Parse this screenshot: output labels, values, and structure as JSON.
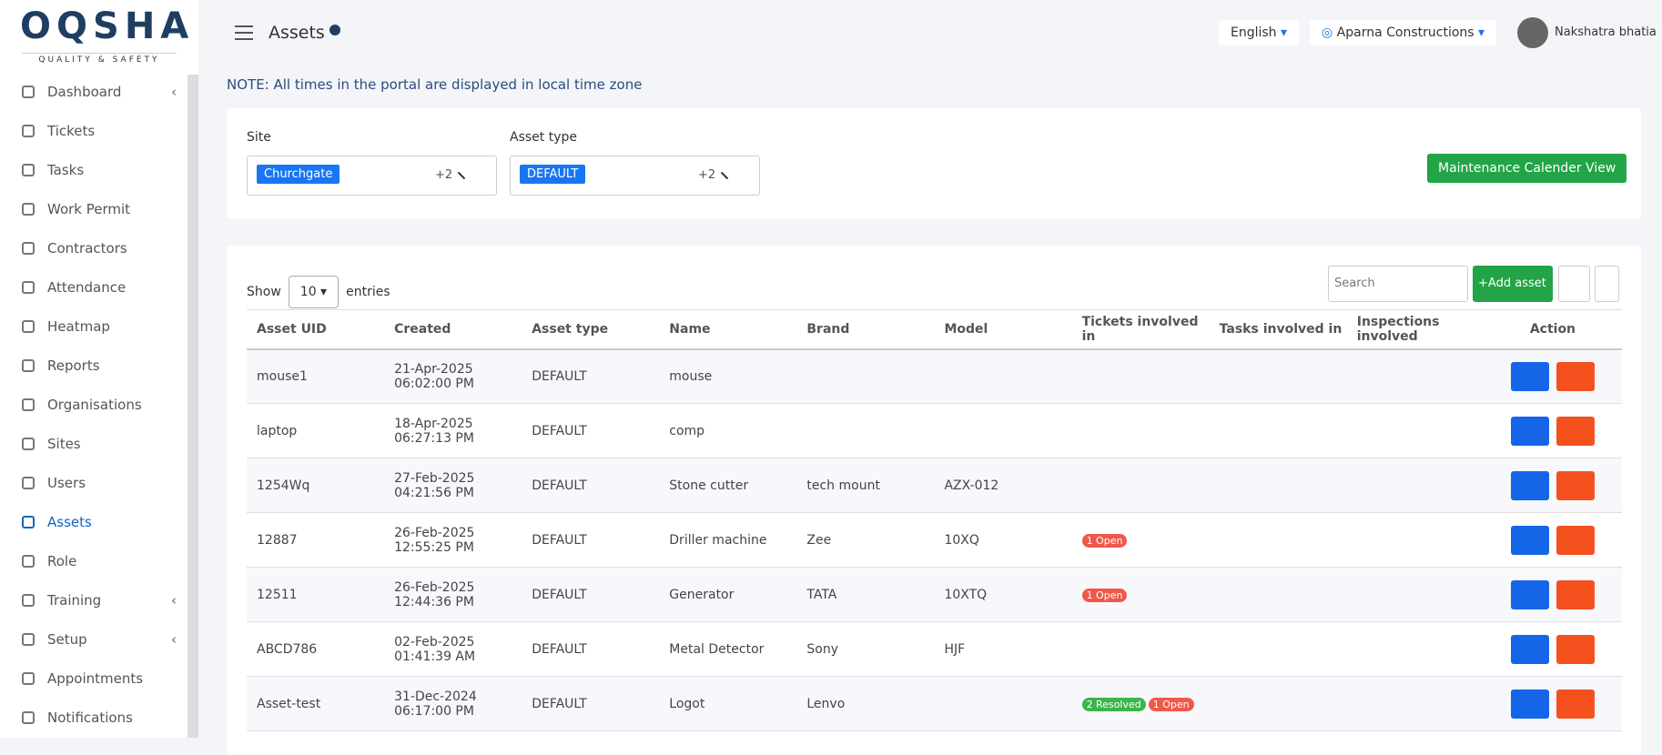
{
  "brand": {
    "name": "OQSHA",
    "tagline": "QUALITY & SAFETY"
  },
  "sidebar": [
    {
      "label": "Dashboard",
      "arrow": true
    },
    {
      "label": "Tickets"
    },
    {
      "label": "Tasks"
    },
    {
      "label": "Work Permit"
    },
    {
      "label": "Contractors"
    },
    {
      "label": "Attendance"
    },
    {
      "label": "Heatmap"
    },
    {
      "label": "Reports"
    },
    {
      "label": "Organisations"
    },
    {
      "label": "Sites"
    },
    {
      "label": "Users"
    },
    {
      "label": "Assets",
      "active": true
    },
    {
      "label": "Role"
    },
    {
      "label": "Training",
      "arrow": true
    },
    {
      "label": "Setup",
      "arrow": true
    },
    {
      "label": "Appointments"
    },
    {
      "label": "Notifications"
    }
  ],
  "header": {
    "title": "Assets",
    "language": "English",
    "company": "Aparna Constructions",
    "user": "Nakshatra bhatia"
  },
  "note": "NOTE: All times in the portal are displayed in local time zone",
  "filters": [
    {
      "label": "Site",
      "chip": "Churchgate",
      "more": "+2"
    },
    {
      "label": "Asset type",
      "chip": "DEFAULT",
      "more": "+2"
    }
  ],
  "maintenance_button": "Maintenance Calender View",
  "table": {
    "show": "Show",
    "entries_value": "10",
    "entries": "entries",
    "search_placeholder": "Search",
    "add_button": "Add asset",
    "columns": [
      "Asset UID",
      "Created",
      "Asset type",
      "Name",
      "Brand",
      "Model",
      "Tickets involved in",
      "Tasks involved in",
      "Inspections involved",
      "Action"
    ],
    "rows": [
      {
        "uid": "mouse1",
        "date": "21-Apr-2025",
        "time": "06:02:00 PM",
        "type": "DEFAULT",
        "name": "mouse"
      },
      {
        "uid": "laptop",
        "date": "18-Apr-2025",
        "time": "06:27:13 PM",
        "type": "DEFAULT",
        "name": "comp"
      },
      {
        "uid": "1254Wq",
        "date": "27-Feb-2025",
        "time": "04:21:56 PM",
        "type": "DEFAULT",
        "name": "Stone cutter",
        "brand": "tech mount",
        "model": "AZX-012"
      },
      {
        "uid": "12887",
        "date": "26-Feb-2025",
        "time": "12:55:25 PM",
        "type": "DEFAULT",
        "name": "Driller machine",
        "brand": "Zee",
        "model": "10XQ",
        "tickets": [
          {
            "text": "1 Open",
            "color": "#f0584a"
          }
        ]
      },
      {
        "uid": "12511",
        "date": "26-Feb-2025",
        "time": "12:44:36 PM",
        "type": "DEFAULT",
        "name": "Generator",
        "brand": "TATA",
        "model": "10XTQ",
        "tickets": [
          {
            "text": "1 Open",
            "color": "#f0584a"
          }
        ]
      },
      {
        "uid": "ABCD786",
        "date": "02-Feb-2025",
        "time": "01:41:39 AM",
        "type": "DEFAULT",
        "name": "Metal Detector",
        "brand": "Sony",
        "model": "HJF"
      },
      {
        "uid": "Asset-test",
        "date": "31-Dec-2024",
        "time": "06:17:00 PM",
        "type": "DEFAULT",
        "name": "Logot",
        "brand": "Lenvo",
        "tickets": [
          {
            "text": "2 Resolved",
            "color": "#3cb54a"
          },
          {
            "text": "1 Open",
            "color": "#f0584a"
          }
        ]
      }
    ]
  }
}
